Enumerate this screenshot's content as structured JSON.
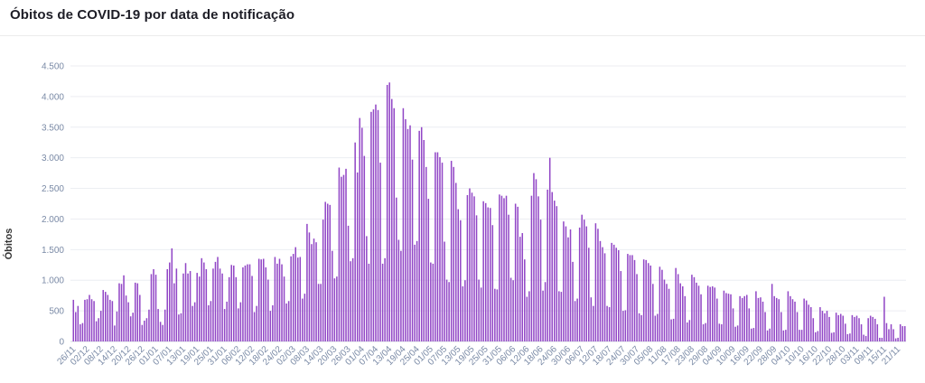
{
  "title": "Óbitos de COVID-19 por data de notificação",
  "chart_data": {
    "type": "bar",
    "ylabel": "Óbitos",
    "xlabel": "",
    "ylim": [
      0,
      4500
    ],
    "yticks": [
      0,
      500,
      1000,
      1500,
      2000,
      2500,
      3000,
      3500,
      4000,
      4500
    ],
    "ytick_labels": [
      "0",
      "500",
      "1.000",
      "1.500",
      "2.000",
      "2.500",
      "3.000",
      "3.500",
      "4.000",
      "4.500"
    ],
    "grid": true,
    "color": "#9146c6",
    "xtick_labels": [
      "26/11",
      "02/12",
      "08/12",
      "14/12",
      "20/12",
      "26/12",
      "01/01",
      "07/01",
      "13/01",
      "19/01",
      "25/01",
      "31/01",
      "06/02",
      "12/02",
      "18/02",
      "24/02",
      "02/03",
      "08/03",
      "14/03",
      "20/03",
      "26/03",
      "01/04",
      "07/04",
      "13/04",
      "19/04",
      "25/04",
      "01/05",
      "07/05",
      "13/05",
      "19/05",
      "25/05",
      "31/05",
      "06/06",
      "12/06",
      "18/06",
      "24/06",
      "30/06",
      "06/07",
      "12/07",
      "18/07",
      "24/07",
      "30/07",
      "05/08",
      "11/08",
      "17/08",
      "23/08",
      "29/08",
      "04/09",
      "10/09",
      "16/09",
      "22/09",
      "28/09",
      "04/10",
      "10/10",
      "16/10",
      "22/10",
      "28/10",
      "03/11",
      "09/11",
      "15/11",
      "21/11"
    ],
    "values": [
      680,
      480,
      580,
      280,
      300,
      680,
      690,
      760,
      690,
      660,
      330,
      380,
      500,
      840,
      810,
      760,
      680,
      660,
      260,
      490,
      950,
      940,
      1080,
      750,
      640,
      410,
      470,
      960,
      950,
      760,
      270,
      340,
      380,
      520,
      1100,
      1180,
      1090,
      530,
      320,
      270,
      520,
      1180,
      1290,
      1520,
      950,
      1190,
      440,
      460,
      1110,
      1280,
      1110,
      1150,
      580,
      640,
      1120,
      1060,
      1360,
      1290,
      1180,
      590,
      660,
      1190,
      1300,
      1380,
      1190,
      1110,
      530,
      650,
      1050,
      1250,
      1240,
      1050,
      540,
      640,
      1210,
      1240,
      1260,
      1260,
      1070,
      480,
      580,
      1350,
      1340,
      1350,
      1210,
      1010,
      500,
      590,
      1380,
      1270,
      1350,
      1260,
      1060,
      620,
      660,
      1390,
      1430,
      1540,
      1370,
      1380,
      700,
      780,
      1920,
      1780,
      1590,
      1680,
      1620,
      940,
      940,
      1990,
      2280,
      2250,
      2230,
      1480,
      1030,
      1060,
      2840,
      2690,
      2720,
      2820,
      1890,
      1310,
      1360,
      3250,
      2760,
      3650,
      3490,
      3030,
      1720,
      1270,
      3750,
      3790,
      3870,
      3780,
      2920,
      1270,
      1360,
      4190,
      4230,
      3960,
      3810,
      2350,
      1660,
      1480,
      3810,
      3630,
      3470,
      3530,
      2970,
      1580,
      1640,
      3440,
      3500,
      3290,
      2850,
      2330,
      1290,
      1270,
      3090,
      3090,
      3010,
      2920,
      1630,
      1010,
      970,
      2950,
      2850,
      2590,
      2160,
      1980,
      900,
      1000,
      2390,
      2500,
      2430,
      2370,
      2060,
      1010,
      880,
      2290,
      2260,
      2190,
      2180,
      1900,
      860,
      850,
      2400,
      2380,
      2340,
      2380,
      2070,
      1040,
      1000,
      2250,
      2200,
      1710,
      1770,
      1340,
      730,
      820,
      2380,
      2750,
      2650,
      2370,
      1990,
      830,
      970,
      2480,
      3000,
      2440,
      2300,
      2210,
      820,
      810,
      1960,
      1880,
      1700,
      1830,
      1300,
      660,
      700,
      1860,
      2070,
      1990,
      1880,
      1530,
      720,
      580,
      1930,
      1840,
      1640,
      1540,
      1440,
      580,
      560,
      1610,
      1580,
      1530,
      1490,
      1150,
      500,
      510,
      1430,
      1410,
      1410,
      1330,
      1100,
      460,
      430,
      1340,
      1330,
      1280,
      1240,
      940,
      420,
      450,
      1220,
      1170,
      1010,
      940,
      860,
      360,
      370,
      1200,
      1100,
      950,
      900,
      740,
      310,
      350,
      1090,
      1050,
      960,
      910,
      770,
      280,
      300,
      910,
      890,
      900,
      880,
      700,
      290,
      280,
      830,
      790,
      780,
      770,
      540,
      240,
      260,
      740,
      710,
      740,
      760,
      540,
      210,
      220,
      820,
      710,
      720,
      650,
      480,
      180,
      210,
      940,
      740,
      710,
      690,
      480,
      180,
      190,
      820,
      740,
      690,
      650,
      480,
      190,
      190,
      700,
      670,
      600,
      560,
      380,
      150,
      170,
      560,
      500,
      460,
      500,
      400,
      140,
      150,
      470,
      430,
      450,
      420,
      290,
      120,
      130,
      430,
      400,
      420,
      380,
      280,
      110,
      90,
      380,
      420,
      400,
      370,
      280,
      60,
      60,
      730,
      300,
      200,
      280,
      200,
      50,
      60,
      280,
      250,
      250
    ]
  }
}
